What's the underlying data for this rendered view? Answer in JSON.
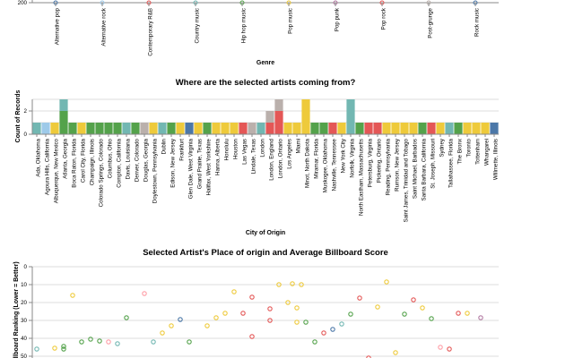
{
  "chart_data": [
    {
      "type": "bar",
      "xlabel": "Genre",
      "categories": [
        "Alternative pop",
        "Alternative rock",
        "Contemporary R&B",
        "Country music",
        "Hip hop music",
        "Pop music",
        "Pop punk",
        "Pop rock",
        "Post-grunge",
        "Rock music"
      ],
      "ytick_visible": "200",
      "colors": [
        "#4c78a8",
        "#9ecae9",
        "#e45756",
        "#72b7b2",
        "#54a24b",
        "#eeca3b",
        "#b279a2",
        "#e45756",
        "#bab0ac",
        "#4c78a8"
      ]
    },
    {
      "type": "bar",
      "title": "Where are the selected artists coming from?",
      "xlabel": "City of Origin",
      "ylabel": "Count of Records",
      "ylim": [
        0,
        3
      ],
      "yticks": [
        "0",
        "2"
      ],
      "categories": [
        "Ada, Oklahoma",
        "Agoura Hills, California",
        "Albuquerque, New Mexico",
        "Atlanta, Georgia",
        "Boca Raton, Florida",
        "Carol City, Florida",
        "Champaign, Illinois",
        "Colorado Springs, Colorado",
        "Columbus, Ohio",
        "Compton, California",
        "Davis, Louisiana",
        "Denver, Colorado",
        "Douglas, Georgia",
        "Doylestown, Pennsylvania",
        "Dublin",
        "Edison, New Jersey",
        "Frankfurt",
        "Glen Dale, West Virginia",
        "Grand Prairie, Texas",
        "Halifax, West Yorkshire",
        "Hanna, Alberta",
        "Honolulu",
        "Houston",
        "Las Vegas",
        "Lindale, Texas",
        "London",
        "London, England",
        "London, Ontario",
        "Los Angeles",
        "Miami",
        "Minot, North Dakota",
        "Miramar, Florida",
        "Muskogee, Oklahoma",
        "Nashville, Tennessee",
        "New York City",
        "Norfolk, Virginia",
        "North Eastham, Massachusetts",
        "Petersburg, Virginia",
        "Pickering, Ontario",
        "Reading, Pennsylvania",
        "Rumson, New Jersey",
        "Saint James, Trinidad and Tobago",
        "Saint Michael, Barbados",
        "Santa Barbara, California",
        "St. Joseph, Missouri",
        "Sydney",
        "Tallahassee, Florida",
        "The Bronx",
        "Toronto",
        "Tottenham",
        "Whangarei",
        "Willmette, Illinois"
      ],
      "stacks": [
        [
          [
            "Country music",
            1
          ]
        ],
        [
          [
            "Alternative rock",
            1
          ]
        ],
        [
          [
            "Pop music",
            1
          ]
        ],
        [
          [
            "Hip hop music",
            2
          ],
          [
            "Country music",
            1
          ]
        ],
        [
          [
            "Hip hop music",
            1
          ]
        ],
        [
          [
            "Pop music",
            1
          ]
        ],
        [
          [
            "Hip hop music",
            1
          ]
        ],
        [
          [
            "Hip hop music",
            1
          ]
        ],
        [
          [
            "Hip hop music",
            1
          ]
        ],
        [
          [
            "Hip hop music",
            1
          ]
        ],
        [
          [
            "Country music",
            1
          ]
        ],
        [
          [
            "Hip hop music",
            1
          ]
        ],
        [
          [
            "Post-grunge",
            1
          ]
        ],
        [
          [
            "Pop music",
            1
          ]
        ],
        [
          [
            "Country music",
            1
          ]
        ],
        [
          [
            "Hip hop music",
            1
          ]
        ],
        [
          [
            "Pop music",
            1
          ]
        ],
        [
          [
            "Alternative pop",
            1
          ]
        ],
        [
          [
            "Pop music",
            1
          ]
        ],
        [
          [
            "Hip hop music",
            1
          ]
        ],
        [
          [
            "Pop music",
            1
          ]
        ],
        [
          [
            "Pop music",
            1
          ]
        ],
        [
          [
            "Pop music",
            1
          ]
        ],
        [
          [
            "Pop rock",
            1
          ]
        ],
        [
          [
            "Post-grunge",
            1
          ]
        ],
        [
          [
            "Country music",
            1
          ]
        ],
        [
          [
            "Contemporary R&B",
            1
          ],
          [
            "Post-grunge",
            1
          ]
        ],
        [
          [
            "Contemporary R&B",
            1
          ],
          [
            "Pop rock",
            1
          ],
          [
            "Post-grunge",
            1
          ]
        ],
        [
          [
            "Pop music",
            1
          ]
        ],
        [
          [
            "Pop music",
            1
          ]
        ],
        [
          [
            "Pop music",
            3
          ]
        ],
        [
          [
            "Hip hop music",
            1
          ]
        ],
        [
          [
            "Hip hop music",
            1
          ]
        ],
        [
          [
            "Contemporary R&B",
            1
          ]
        ],
        [
          [
            "Pop music",
            1
          ]
        ],
        [
          [
            "Country music",
            3
          ]
        ],
        [
          [
            "Hip hop music",
            1
          ]
        ],
        [
          [
            "Contemporary R&B",
            1
          ]
        ],
        [
          [
            "Contemporary R&B",
            1
          ]
        ],
        [
          [
            "Pop music",
            1
          ]
        ],
        [
          [
            "Pop music",
            1
          ]
        ],
        [
          [
            "Pop music",
            1
          ]
        ],
        [
          [
            "Pop music",
            1
          ]
        ],
        [
          [
            "Hip hop music",
            1
          ]
        ],
        [
          [
            "Contemporary R&B",
            1
          ]
        ],
        [
          [
            "Pop music",
            1
          ]
        ],
        [
          [
            "Country music",
            1
          ]
        ],
        [
          [
            "Hip hop music",
            1
          ]
        ],
        [
          [
            "Pop music",
            1
          ]
        ],
        [
          [
            "Pop music",
            1
          ]
        ],
        [
          [
            "Pop music",
            1
          ]
        ],
        [
          [
            "Rock music",
            1
          ]
        ]
      ]
    },
    {
      "type": "scatter",
      "title": "Selected Artist's Place of origin and Average Billboard Score",
      "ylabel": "Billboard Ranking (Lower = Better)",
      "ylim": [
        0,
        50
      ],
      "yreversed": true,
      "yticks": [
        "0",
        "10",
        "20",
        "30",
        "40",
        "50"
      ],
      "points": [
        {
          "x": 0,
          "y": 46,
          "c": "#72b7b2"
        },
        {
          "x": 2,
          "y": 45.5,
          "c": "#eeca3b"
        },
        {
          "x": 3,
          "y": 44.5,
          "c": "#54a24b"
        },
        {
          "x": 3,
          "y": 46,
          "c": "#54a24b"
        },
        {
          "x": 4,
          "y": 16,
          "c": "#eeca3b"
        },
        {
          "x": 5,
          "y": 42,
          "c": "#54a24b"
        },
        {
          "x": 6,
          "y": 40.5,
          "c": "#54a24b"
        },
        {
          "x": 7,
          "y": 41.5,
          "c": "#54a24b"
        },
        {
          "x": 8,
          "y": 42,
          "c": "#ff9da6"
        },
        {
          "x": 9,
          "y": 43,
          "c": "#72b7b2"
        },
        {
          "x": 10,
          "y": 28.5,
          "c": "#54a24b"
        },
        {
          "x": 12,
          "y": 15,
          "c": "#ff9da6"
        },
        {
          "x": 13,
          "y": 42,
          "c": "#72b7b2"
        },
        {
          "x": 14,
          "y": 37,
          "c": "#eeca3b"
        },
        {
          "x": 15,
          "y": 33,
          "c": "#eeca3b"
        },
        {
          "x": 16,
          "y": 29.5,
          "c": "#4c78a8"
        },
        {
          "x": 17,
          "y": 42,
          "c": "#54a24b"
        },
        {
          "x": 19,
          "y": 33,
          "c": "#eeca3b"
        },
        {
          "x": 20,
          "y": 28.5,
          "c": "#eeca3b"
        },
        {
          "x": 21,
          "y": 26,
          "c": "#eeca3b"
        },
        {
          "x": 22,
          "y": 14,
          "c": "#eeca3b"
        },
        {
          "x": 23,
          "y": 26,
          "c": "#e45756"
        },
        {
          "x": 24,
          "y": 39,
          "c": "#e45756"
        },
        {
          "x": 24,
          "y": 17,
          "c": "#e45756"
        },
        {
          "x": 26,
          "y": 30,
          "c": "#e45756"
        },
        {
          "x": 26,
          "y": 23.5,
          "c": "#e45756"
        },
        {
          "x": 27,
          "y": 10,
          "c": "#eeca3b"
        },
        {
          "x": 28,
          "y": 20,
          "c": "#eeca3b"
        },
        {
          "x": 28.5,
          "y": 9.5,
          "c": "#eeca3b"
        },
        {
          "x": 29,
          "y": 31,
          "c": "#eeca3b"
        },
        {
          "x": 29,
          "y": 23,
          "c": "#eeca3b"
        },
        {
          "x": 29.5,
          "y": 10,
          "c": "#eeca3b"
        },
        {
          "x": 30,
          "y": 31,
          "c": "#54a24b"
        },
        {
          "x": 31,
          "y": 42,
          "c": "#54a24b"
        },
        {
          "x": 32,
          "y": 37,
          "c": "#e45756"
        },
        {
          "x": 33,
          "y": 35,
          "c": "#4c78a8"
        },
        {
          "x": 34,
          "y": 32,
          "c": "#72b7b2"
        },
        {
          "x": 35,
          "y": 26.5,
          "c": "#54a24b"
        },
        {
          "x": 36,
          "y": 17.5,
          "c": "#e45756"
        },
        {
          "x": 37,
          "y": 51,
          "c": "#e45756"
        },
        {
          "x": 38,
          "y": 22.5,
          "c": "#eeca3b"
        },
        {
          "x": 39,
          "y": 8.5,
          "c": "#eeca3b"
        },
        {
          "x": 40,
          "y": 48,
          "c": "#eeca3b"
        },
        {
          "x": 41,
          "y": 26.5,
          "c": "#54a24b"
        },
        {
          "x": 42,
          "y": 18.5,
          "c": "#e45756"
        },
        {
          "x": 43,
          "y": 23,
          "c": "#eeca3b"
        },
        {
          "x": 44,
          "y": 29,
          "c": "#54a24b"
        },
        {
          "x": 45,
          "y": 45,
          "c": "#ff9da6"
        },
        {
          "x": 46,
          "y": 46,
          "c": "#e45756"
        },
        {
          "x": 47,
          "y": 26,
          "c": "#e45756"
        },
        {
          "x": 48,
          "y": 26,
          "c": "#eeca3b"
        },
        {
          "x": 49.5,
          "y": 28.5,
          "c": "#b279a2"
        }
      ]
    }
  ]
}
